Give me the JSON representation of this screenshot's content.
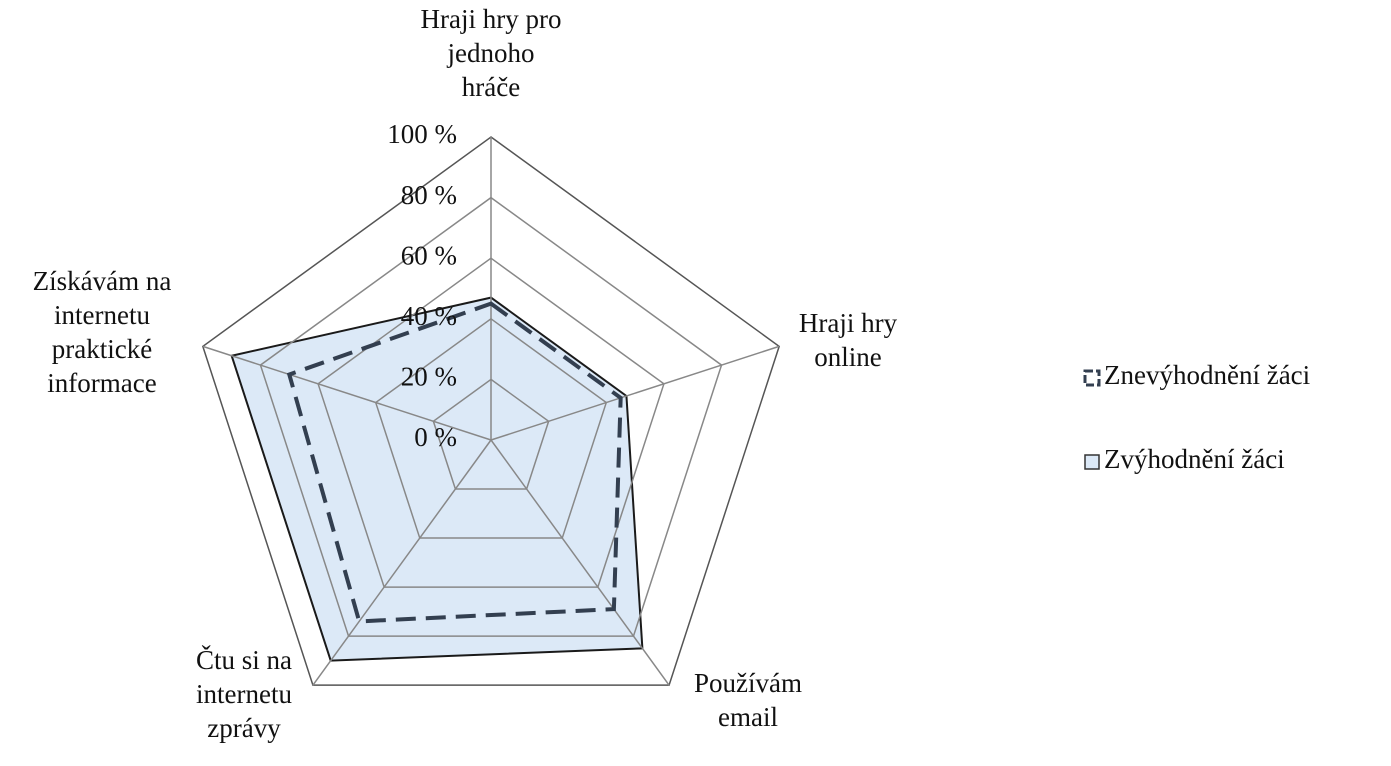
{
  "chart_data": {
    "type": "radar",
    "categories": [
      "Hraji hry pro jednoho hráče",
      "Hraji hry online",
      "Používám email",
      "Čtu si na internetu zprávy",
      "Získávám na internetu praktické informace"
    ],
    "series": [
      {
        "name": "Znevýhodnění žáci",
        "color": "#333f50",
        "values": [
          45,
          45,
          69,
          74,
          70
        ]
      },
      {
        "name": "Zvýhodnění žáci",
        "color": "#dce9f7",
        "values": [
          47,
          47,
          85,
          90,
          90
        ]
      }
    ],
    "ylim": [
      0,
      100
    ],
    "yticks": [
      {
        "value": 0,
        "label": "0 %"
      },
      {
        "value": 20,
        "label": "20 %"
      },
      {
        "value": 40,
        "label": "40 %"
      },
      {
        "value": 60,
        "label": "60 %"
      },
      {
        "value": 80,
        "label": "80 %"
      },
      {
        "value": 100,
        "label": "100 %"
      }
    ]
  }
}
